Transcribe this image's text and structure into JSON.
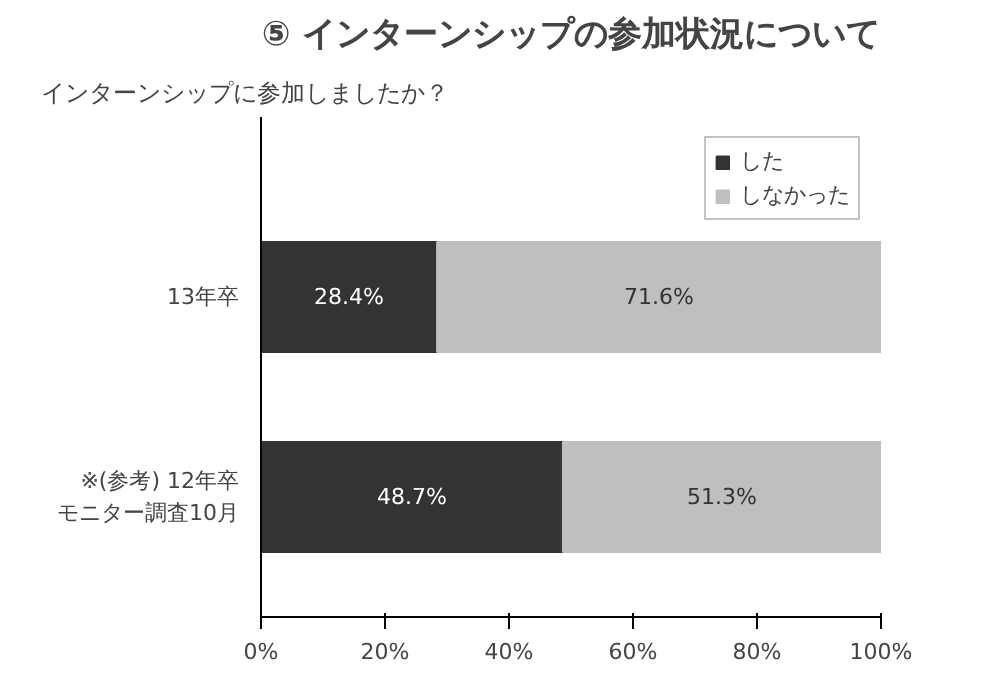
{
  "chart_data": {
    "type": "bar",
    "orientation": "horizontal",
    "stacked": true,
    "title": "⑤ インターンシップの参加状況について",
    "subtitle": "インターンシップに参加しましたか？",
    "categories": [
      "13年卒",
      "※(参考) 12年卒モニター調査10月"
    ],
    "series": [
      {
        "name": "した",
        "color": "#333333",
        "values": [
          28.4,
          48.7
        ],
        "value_labels": [
          "28.4%",
          "48.7%"
        ]
      },
      {
        "name": "しなかった",
        "color": "#bfbfbf",
        "values": [
          71.6,
          51.3
        ],
        "value_labels": [
          "71.6%",
          "51.3%"
        ]
      }
    ],
    "xlim": [
      0,
      100
    ],
    "xticks": [
      {
        "value": 0,
        "label": "0%"
      },
      {
        "value": 20,
        "label": "20%"
      },
      {
        "value": 40,
        "label": "40%"
      },
      {
        "value": 60,
        "label": "60%"
      },
      {
        "value": 80,
        "label": "80%"
      },
      {
        "value": 100,
        "label": "100%"
      }
    ],
    "grid": false,
    "legend": "top right"
  }
}
